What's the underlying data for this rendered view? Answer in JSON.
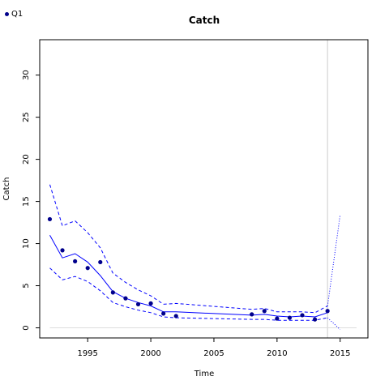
{
  "chart_data": {
    "type": "line",
    "title": "Catch",
    "xlabel": "Time",
    "ylabel": "Catch",
    "xlim": [
      1991.2,
      2017.2
    ],
    "ylim": [
      -1.2,
      34.2
    ],
    "xticks": [
      1995,
      2000,
      2005,
      2010,
      2015
    ],
    "yticks": [
      0,
      5,
      10,
      15,
      20,
      25,
      30
    ],
    "legend": {
      "position": "top-left",
      "label": "Q1"
    },
    "colors": {
      "observed": "#00008b",
      "fit": "#0000ff",
      "reference_line": "#cccccc",
      "zero_line": "#dddddd"
    },
    "observed": {
      "name": "Q1",
      "x": [
        1992,
        1993,
        1994,
        1995,
        1996,
        1997,
        1998,
        1999,
        2000,
        2001,
        2002,
        2008,
        2009,
        2010,
        2011,
        2012,
        2013,
        2014
      ],
      "y": [
        12.9,
        9.2,
        7.9,
        7.1,
        7.8,
        4.2,
        3.5,
        2.8,
        2.9,
        1.7,
        1.4,
        1.6,
        2.0,
        1.1,
        1.2,
        1.5,
        1.0,
        2.0
      ]
    },
    "fit": {
      "x": [
        1992,
        1993,
        1994,
        1995,
        1996,
        1997,
        1998,
        1999,
        2000,
        2001,
        2002,
        2008,
        2009,
        2010,
        2011,
        2012,
        2013,
        2014
      ],
      "y": [
        11.0,
        8.3,
        8.8,
        7.8,
        6.2,
        4.3,
        3.5,
        3.0,
        2.6,
        1.9,
        1.9,
        1.5,
        1.6,
        1.4,
        1.3,
        1.4,
        1.3,
        1.8
      ]
    },
    "upper": {
      "x": [
        1992,
        1993,
        1994,
        1995,
        1996,
        1997,
        1998,
        1999,
        2000,
        2001,
        2002,
        2008,
        2009,
        2010,
        2011,
        2012,
        2013,
        2014
      ],
      "y": [
        17.0,
        12.1,
        12.7,
        11.3,
        9.5,
        6.5,
        5.4,
        4.5,
        3.8,
        2.8,
        2.9,
        2.2,
        2.3,
        1.9,
        1.9,
        1.9,
        1.8,
        2.6
      ]
    },
    "lower": {
      "x": [
        1992,
        1993,
        1994,
        1995,
        1996,
        1997,
        1998,
        1999,
        2000,
        2001,
        2002,
        2008,
        2009,
        2010,
        2011,
        2012,
        2013,
        2014
      ],
      "y": [
        7.1,
        5.7,
        6.1,
        5.5,
        4.4,
        3.0,
        2.5,
        2.1,
        1.8,
        1.3,
        1.2,
        1.0,
        1.0,
        0.9,
        0.9,
        0.9,
        0.9,
        1.2
      ]
    },
    "forecast_upper": {
      "x": [
        2014,
        2015
      ],
      "y": [
        2.6,
        13.4
      ]
    },
    "forecast_lower": {
      "x": [
        2014,
        2015
      ],
      "y": [
        1.2,
        -0.2
      ]
    },
    "vertical_reference_x": 2014,
    "zero_line_xrange": [
      1992,
      2016.3
    ]
  }
}
